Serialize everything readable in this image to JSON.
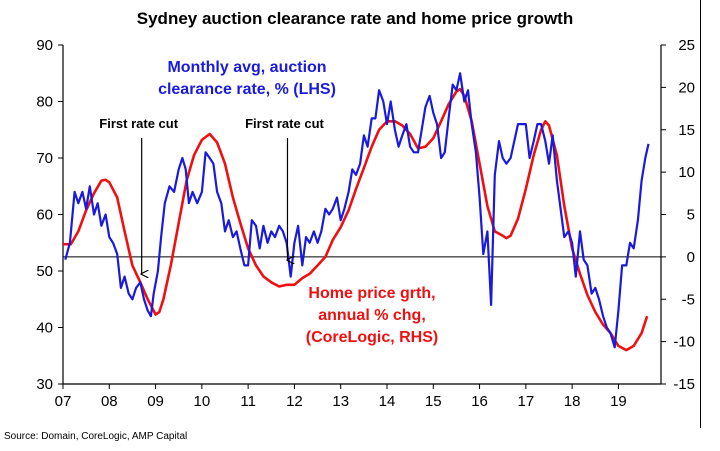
{
  "chart_data": {
    "type": "line",
    "title": "Sydney auction clearance rate and home price growth",
    "x_ticks": [
      "07",
      "08",
      "09",
      "10",
      "11",
      "12",
      "13",
      "14",
      "15",
      "16",
      "17",
      "18",
      "19"
    ],
    "x_range": [
      2007,
      2019.92
    ],
    "y_left": {
      "range": [
        30,
        90
      ],
      "ticks": [
        "90",
        "80",
        "70",
        "60",
        "50",
        "40",
        "30"
      ]
    },
    "y_right": {
      "range": [
        -15,
        25
      ],
      "ticks": [
        "25",
        "20",
        "15",
        "10",
        "5",
        "0",
        "-5",
        "-10",
        "-15"
      ]
    },
    "series": [
      {
        "name": "Monthly avg, auction clearance rate, % (LHS)",
        "axis": "left",
        "color": "#1a1adf",
        "points": [
          [
            2007.05,
            52
          ],
          [
            2007.15,
            55
          ],
          [
            2007.25,
            64
          ],
          [
            2007.33,
            62
          ],
          [
            2007.42,
            64
          ],
          [
            2007.5,
            61
          ],
          [
            2007.58,
            65
          ],
          [
            2007.67,
            60
          ],
          [
            2007.75,
            62
          ],
          [
            2007.83,
            58
          ],
          [
            2007.92,
            60
          ],
          [
            2008.0,
            56
          ],
          [
            2008.08,
            55
          ],
          [
            2008.17,
            53
          ],
          [
            2008.25,
            47
          ],
          [
            2008.33,
            49
          ],
          [
            2008.42,
            46
          ],
          [
            2008.5,
            45
          ],
          [
            2008.58,
            47
          ],
          [
            2008.67,
            48
          ],
          [
            2008.75,
            45
          ],
          [
            2008.83,
            43
          ],
          [
            2008.9,
            42
          ],
          [
            2008.96,
            46
          ],
          [
            2009.05,
            50
          ],
          [
            2009.12,
            56
          ],
          [
            2009.2,
            62
          ],
          [
            2009.3,
            65
          ],
          [
            2009.4,
            64
          ],
          [
            2009.5,
            68
          ],
          [
            2009.58,
            70
          ],
          [
            2009.65,
            68
          ],
          [
            2009.72,
            62
          ],
          [
            2009.8,
            64
          ],
          [
            2009.9,
            62
          ],
          [
            2010.0,
            64
          ],
          [
            2010.08,
            71
          ],
          [
            2010.17,
            70
          ],
          [
            2010.25,
            69
          ],
          [
            2010.33,
            64
          ],
          [
            2010.42,
            62
          ],
          [
            2010.5,
            57
          ],
          [
            2010.58,
            59
          ],
          [
            2010.67,
            56
          ],
          [
            2010.75,
            57
          ],
          [
            2010.83,
            54
          ],
          [
            2010.92,
            51
          ],
          [
            2011.0,
            51
          ],
          [
            2011.08,
            59
          ],
          [
            2011.17,
            58
          ],
          [
            2011.25,
            54
          ],
          [
            2011.33,
            58
          ],
          [
            2011.42,
            55
          ],
          [
            2011.5,
            57
          ],
          [
            2011.58,
            56
          ],
          [
            2011.67,
            58
          ],
          [
            2011.75,
            57
          ],
          [
            2011.83,
            55
          ],
          [
            2011.92,
            49
          ],
          [
            2012.0,
            55
          ],
          [
            2012.08,
            58
          ],
          [
            2012.17,
            51
          ],
          [
            2012.25,
            56
          ],
          [
            2012.33,
            55
          ],
          [
            2012.42,
            57
          ],
          [
            2012.5,
            55
          ],
          [
            2012.58,
            57
          ],
          [
            2012.67,
            61
          ],
          [
            2012.75,
            60
          ],
          [
            2012.83,
            61
          ],
          [
            2012.92,
            63
          ],
          [
            2013.0,
            59
          ],
          [
            2013.08,
            61
          ],
          [
            2013.17,
            64
          ],
          [
            2013.25,
            68
          ],
          [
            2013.33,
            67
          ],
          [
            2013.42,
            69
          ],
          [
            2013.5,
            74
          ],
          [
            2013.58,
            72
          ],
          [
            2013.67,
            77
          ],
          [
            2013.75,
            77
          ],
          [
            2013.83,
            82
          ],
          [
            2013.92,
            80
          ],
          [
            2014.0,
            76
          ],
          [
            2014.08,
            80
          ],
          [
            2014.17,
            75
          ],
          [
            2014.25,
            72
          ],
          [
            2014.33,
            74
          ],
          [
            2014.42,
            76
          ],
          [
            2014.5,
            72
          ],
          [
            2014.58,
            71
          ],
          [
            2014.67,
            71
          ],
          [
            2014.75,
            75
          ],
          [
            2014.83,
            79
          ],
          [
            2014.92,
            81
          ],
          [
            2015.0,
            78
          ],
          [
            2015.08,
            76
          ],
          [
            2015.17,
            70
          ],
          [
            2015.25,
            71
          ],
          [
            2015.33,
            77
          ],
          [
            2015.42,
            83
          ],
          [
            2015.5,
            82
          ],
          [
            2015.58,
            85
          ],
          [
            2015.67,
            80
          ],
          [
            2015.75,
            82
          ],
          [
            2015.83,
            76
          ],
          [
            2015.92,
            71
          ],
          [
            2016.0,
            63
          ],
          [
            2016.08,
            53
          ],
          [
            2016.17,
            57
          ],
          [
            2016.25,
            44
          ],
          [
            2016.33,
            67
          ],
          [
            2016.42,
            73
          ],
          [
            2016.5,
            70
          ],
          [
            2016.58,
            69
          ],
          [
            2016.67,
            70
          ],
          [
            2016.75,
            73
          ],
          [
            2016.83,
            76
          ],
          [
            2016.92,
            76
          ],
          [
            2017.0,
            76
          ],
          [
            2017.08,
            70
          ],
          [
            2017.17,
            73
          ],
          [
            2017.25,
            76
          ],
          [
            2017.33,
            76
          ],
          [
            2017.42,
            73
          ],
          [
            2017.5,
            69
          ],
          [
            2017.58,
            74
          ],
          [
            2017.67,
            66
          ],
          [
            2017.75,
            61
          ],
          [
            2017.83,
            56
          ],
          [
            2017.92,
            57
          ],
          [
            2018.0,
            55
          ],
          [
            2018.08,
            49
          ],
          [
            2018.17,
            57
          ],
          [
            2018.25,
            52
          ],
          [
            2018.33,
            51
          ],
          [
            2018.42,
            46
          ],
          [
            2018.5,
            47
          ],
          [
            2018.58,
            45
          ],
          [
            2018.67,
            42
          ],
          [
            2018.75,
            40
          ],
          [
            2018.83,
            39
          ],
          [
            2018.92,
            36.5
          ],
          [
            2019.0,
            43
          ],
          [
            2019.08,
            51
          ],
          [
            2019.17,
            51
          ],
          [
            2019.25,
            55
          ],
          [
            2019.33,
            54
          ],
          [
            2019.42,
            59
          ],
          [
            2019.5,
            66
          ],
          [
            2019.58,
            70
          ],
          [
            2019.65,
            72.5
          ]
        ]
      },
      {
        "name": "Home price grth, annual % chg, (CoreLogic, RHS)",
        "axis": "right",
        "color": "#ee1111",
        "points": [
          [
            2007.0,
            1.5
          ],
          [
            2007.17,
            1.5
          ],
          [
            2007.33,
            3
          ],
          [
            2007.5,
            5.5
          ],
          [
            2007.67,
            7.5
          ],
          [
            2007.83,
            9
          ],
          [
            2007.92,
            9.1
          ],
          [
            2008.0,
            8.8
          ],
          [
            2008.17,
            7
          ],
          [
            2008.33,
            3
          ],
          [
            2008.5,
            -1
          ],
          [
            2008.67,
            -3
          ],
          [
            2008.83,
            -5
          ],
          [
            2009.0,
            -6.8
          ],
          [
            2009.08,
            -6.5
          ],
          [
            2009.17,
            -5
          ],
          [
            2009.33,
            -1
          ],
          [
            2009.5,
            4
          ],
          [
            2009.67,
            9
          ],
          [
            2009.83,
            12
          ],
          [
            2010.0,
            13.8
          ],
          [
            2010.17,
            14.5
          ],
          [
            2010.33,
            13.5
          ],
          [
            2010.5,
            11
          ],
          [
            2010.67,
            7
          ],
          [
            2010.83,
            4
          ],
          [
            2011.0,
            1
          ],
          [
            2011.17,
            -1
          ],
          [
            2011.33,
            -2.3
          ],
          [
            2011.5,
            -3
          ],
          [
            2011.67,
            -3.5
          ],
          [
            2011.83,
            -3.3
          ],
          [
            2012.0,
            -3.3
          ],
          [
            2012.17,
            -2.5
          ],
          [
            2012.33,
            -2
          ],
          [
            2012.5,
            -1
          ],
          [
            2012.67,
            0
          ],
          [
            2012.83,
            2
          ],
          [
            2013.0,
            3.5
          ],
          [
            2013.17,
            5.5
          ],
          [
            2013.33,
            8
          ],
          [
            2013.5,
            10.5
          ],
          [
            2013.67,
            13
          ],
          [
            2013.83,
            15
          ],
          [
            2014.0,
            16
          ],
          [
            2014.17,
            16
          ],
          [
            2014.33,
            15.5
          ],
          [
            2014.5,
            14.5
          ],
          [
            2014.67,
            12.8
          ],
          [
            2014.83,
            13
          ],
          [
            2015.0,
            14
          ],
          [
            2015.17,
            16
          ],
          [
            2015.33,
            18
          ],
          [
            2015.5,
            19.5
          ],
          [
            2015.58,
            19.8
          ],
          [
            2015.67,
            19
          ],
          [
            2015.83,
            16
          ],
          [
            2016.0,
            11
          ],
          [
            2016.17,
            6
          ],
          [
            2016.33,
            3
          ],
          [
            2016.5,
            2.5
          ],
          [
            2016.58,
            2.2
          ],
          [
            2016.67,
            2.5
          ],
          [
            2016.83,
            4.5
          ],
          [
            2017.0,
            8
          ],
          [
            2017.17,
            12
          ],
          [
            2017.33,
            15
          ],
          [
            2017.42,
            16
          ],
          [
            2017.5,
            15.5
          ],
          [
            2017.67,
            12
          ],
          [
            2017.83,
            6
          ],
          [
            2018.0,
            1
          ],
          [
            2018.17,
            -2
          ],
          [
            2018.33,
            -4.5
          ],
          [
            2018.5,
            -6.5
          ],
          [
            2018.67,
            -8
          ],
          [
            2018.83,
            -9
          ],
          [
            2019.0,
            -10.5
          ],
          [
            2019.17,
            -11
          ],
          [
            2019.33,
            -10.5
          ],
          [
            2019.5,
            -9
          ],
          [
            2019.62,
            -7
          ]
        ]
      }
    ],
    "annotations": {
      "blue_label": [
        "Monthly avg, auction",
        "clearance rate, % (LHS)"
      ],
      "red_label": [
        "Home price grth,",
        "annual % chg,",
        "(CoreLogic, RHS)"
      ],
      "rate_cuts": [
        {
          "label": "First rate cut",
          "x": 2008.7
        },
        {
          "label": "First rate cut",
          "x": 2011.85
        }
      ]
    }
  },
  "source": "Source: Domain, CoreLogic, AMP Capital"
}
